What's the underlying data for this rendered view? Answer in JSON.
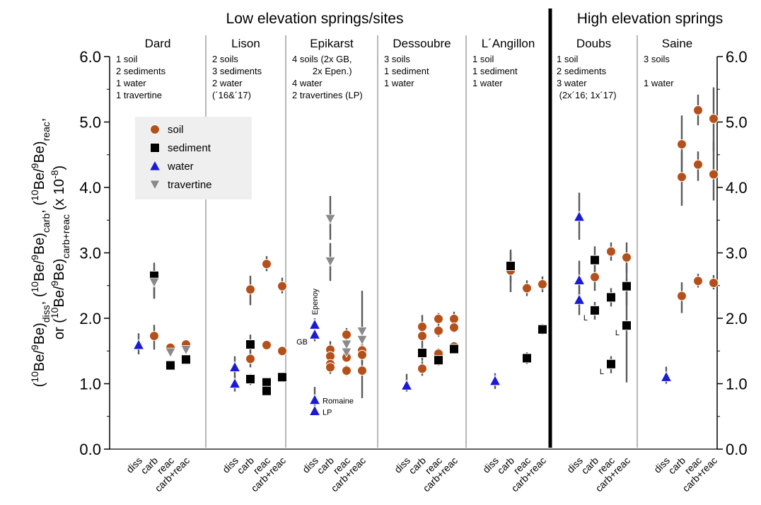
{
  "chart_data": {
    "type": "scatter",
    "header_low": "Low elevation springs/sites",
    "header_high": "High elevation springs",
    "ylabel_lines": [
      [
        "(",
        {
          "sup": "10"
        },
        "Be/",
        {
          "sup": "9"
        },
        "Be)",
        {
          "sub": "diss"
        },
        ", (",
        {
          "sup": "10"
        },
        "Be/",
        {
          "sup": "9"
        },
        "Be)",
        {
          "sub": "carb"
        },
        ", (",
        {
          "sup": "10"
        },
        "Be/",
        {
          "sup": "9"
        },
        "Be)",
        {
          "sub": "reac"
        },
        ","
      ],
      [
        "or (",
        {
          "sup": "10"
        },
        "Be/",
        {
          "sup": "9"
        },
        "Be)",
        {
          "sub": "carb+reac"
        },
        " (x 10",
        {
          "sup": "-8"
        },
        ")"
      ]
    ],
    "ylim": [
      0,
      6
    ],
    "yticks": [
      "0.0",
      "1.0",
      "2.0",
      "3.0",
      "4.0",
      "5.0",
      "6.0"
    ],
    "categories": [
      "diss",
      "carb",
      "reac",
      "carb+reac"
    ],
    "legend": [
      {
        "key": "soil",
        "label": "soil",
        "color": "#b5501a"
      },
      {
        "key": "sediment",
        "label": "sediment",
        "color": "#000000"
      },
      {
        "key": "water",
        "label": "water",
        "color": "#1a1ad8"
      },
      {
        "key": "travertine",
        "label": "travertine",
        "color": "#8a8a8a"
      }
    ],
    "sites": [
      {
        "name": "Dard",
        "info": [
          "1 soil",
          "2 sediments",
          "1 water",
          "1 travertine"
        ],
        "points": [
          {
            "cat": "diss",
            "kind": "water",
            "y": 1.59,
            "err": [
              1.45,
              1.77
            ]
          },
          {
            "cat": "carb",
            "kind": "soil",
            "y": 1.73,
            "err": [
              1.52,
              1.9
            ]
          },
          {
            "cat": "carb",
            "kind": "sediment",
            "y": 2.65,
            "err": [
              2.3,
              2.85
            ]
          },
          {
            "cat": "carb",
            "kind": "travertine",
            "y": 2.55,
            "err": [
              2.3,
              2.75
            ]
          },
          {
            "cat": "reac",
            "kind": "soil",
            "y": 1.55,
            "err": [
              1.5,
              1.6
            ]
          },
          {
            "cat": "reac",
            "kind": "sediment",
            "y": 1.28,
            "err": [
              1.22,
              1.34
            ]
          },
          {
            "cat": "reac",
            "kind": "travertine",
            "y": 1.48,
            "err": [
              1.44,
              1.52
            ]
          },
          {
            "cat": "carb+reac",
            "kind": "soil",
            "y": 1.6,
            "err": [
              1.55,
              1.65
            ]
          },
          {
            "cat": "carb+reac",
            "kind": "sediment",
            "y": 1.37,
            "err": [
              1.32,
              1.42
            ]
          },
          {
            "cat": "carb+reac",
            "kind": "travertine",
            "y": 1.52,
            "err": [
              1.48,
              1.56
            ]
          }
        ]
      },
      {
        "name": "Lison",
        "info": [
          "2 soils",
          "3 sediments",
          "2 water",
          "(´16&´17)"
        ],
        "points": [
          {
            "cat": "diss",
            "kind": "water",
            "y": 1.25,
            "err": [
              1.1,
              1.42
            ]
          },
          {
            "cat": "diss",
            "kind": "water",
            "y": 1.0,
            "err": [
              0.88,
              1.12
            ]
          },
          {
            "cat": "carb",
            "kind": "soil",
            "y": 2.44,
            "err": [
              2.2,
              2.65
            ]
          },
          {
            "cat": "carb",
            "kind": "soil",
            "y": 1.38,
            "err": [
              1.25,
              1.52
            ]
          },
          {
            "cat": "carb",
            "kind": "sediment",
            "y": 1.6,
            "err": [
              1.45,
              1.75
            ]
          },
          {
            "cat": "carb",
            "kind": "sediment",
            "y": 1.07,
            "err": [
              0.98,
              1.15
            ]
          },
          {
            "cat": "reac",
            "kind": "soil",
            "y": 2.83,
            "err": [
              2.72,
              2.95
            ]
          },
          {
            "cat": "reac",
            "kind": "soil",
            "y": 1.59,
            "err": [
              1.52,
              1.66
            ]
          },
          {
            "cat": "reac",
            "kind": "sediment",
            "y": 1.02,
            "err": [
              0.96,
              1.08
            ]
          },
          {
            "cat": "reac",
            "kind": "sediment",
            "y": 0.89,
            "err": [
              0.84,
              0.94
            ]
          },
          {
            "cat": "carb+reac",
            "kind": "soil",
            "y": 2.49,
            "err": [
              2.38,
              2.62
            ]
          },
          {
            "cat": "carb+reac",
            "kind": "soil",
            "y": 1.5,
            "err": [
              1.45,
              1.55
            ]
          },
          {
            "cat": "carb+reac",
            "kind": "sediment",
            "y": 1.1,
            "err": [
              1.04,
              1.16
            ]
          }
        ]
      },
      {
        "name": "Epikarst",
        "info": [
          "4 soils (2x GB,",
          "        2x Epen.)",
          "4 water",
          "2 travertines (LP)"
        ],
        "points": [
          {
            "cat": "diss",
            "kind": "water",
            "y": 1.9,
            "err": [
              1.8,
              2.0
            ],
            "label": "Epenoy",
            "label_pos": "vertical"
          },
          {
            "cat": "diss",
            "kind": "water",
            "y": 1.75,
            "err": [
              1.65,
              1.85
            ],
            "label": "GB",
            "label_pos": "left"
          },
          {
            "cat": "diss",
            "kind": "water",
            "y": 0.75,
            "err": [
              0.65,
              0.95
            ],
            "label": "Romaine",
            "label_pos": "right"
          },
          {
            "cat": "diss",
            "kind": "water",
            "y": 0.58,
            "err": [
              0.52,
              0.64
            ],
            "label": "LP",
            "label_pos": "right"
          },
          {
            "cat": "carb",
            "kind": "soil",
            "y": 1.52,
            "err": [
              1.4,
              1.65
            ]
          },
          {
            "cat": "carb",
            "kind": "soil",
            "y": 1.42,
            "err": [
              1.32,
              1.52
            ]
          },
          {
            "cat": "carb",
            "kind": "soil",
            "y": 1.3,
            "err": [
              1.2,
              1.4
            ]
          },
          {
            "cat": "carb",
            "kind": "soil",
            "y": 1.25,
            "err": [
              1.15,
              1.35
            ]
          },
          {
            "cat": "carb",
            "kind": "travertine",
            "y": 3.52,
            "err": [
              3.2,
              3.87
            ]
          },
          {
            "cat": "carb",
            "kind": "travertine",
            "y": 2.87,
            "err": [
              2.57,
              3.15
            ]
          },
          {
            "cat": "reac",
            "kind": "soil",
            "y": 1.75,
            "err": [
              1.65,
              1.85
            ]
          },
          {
            "cat": "reac",
            "kind": "soil",
            "y": 1.42,
            "err": [
              1.35,
              1.5
            ]
          },
          {
            "cat": "reac",
            "kind": "soil",
            "y": 1.4,
            "err": [
              1.33,
              1.47
            ]
          },
          {
            "cat": "reac",
            "kind": "soil",
            "y": 1.2,
            "err": [
              1.12,
              1.28
            ]
          },
          {
            "cat": "reac",
            "kind": "travertine",
            "y": 1.6,
            "err": [
              1.52,
              1.68
            ]
          },
          {
            "cat": "reac",
            "kind": "travertine",
            "y": 1.48,
            "err": [
              1.4,
              1.56
            ]
          },
          {
            "cat": "carb+reac",
            "kind": "soil",
            "y": 1.51,
            "err": [
              1.4,
              1.62
            ]
          },
          {
            "cat": "carb+reac",
            "kind": "soil",
            "y": 1.44,
            "err": [
              1.3,
              1.58
            ]
          },
          {
            "cat": "carb+reac",
            "kind": "soil",
            "y": 1.2,
            "err": [
              0.78,
              1.65
            ]
          },
          {
            "cat": "carb+reac",
            "kind": "travertine",
            "y": 1.8,
            "err": [
              1.5,
              2.42
            ]
          },
          {
            "cat": "carb+reac",
            "kind": "travertine",
            "y": 1.67,
            "err": [
              1.55,
              1.78
            ]
          }
        ]
      },
      {
        "name": "Dessoubre",
        "info": [
          "3 soils",
          "1 sediment",
          "1 water"
        ],
        "points": [
          {
            "cat": "diss",
            "kind": "water",
            "y": 0.97,
            "err": [
              0.88,
              1.15
            ]
          },
          {
            "cat": "carb",
            "kind": "soil",
            "y": 1.87,
            "err": [
              1.75,
              2.05
            ]
          },
          {
            "cat": "carb",
            "kind": "soil",
            "y": 1.73,
            "err": [
              1.6,
              1.85
            ]
          },
          {
            "cat": "carb",
            "kind": "soil",
            "y": 1.23,
            "err": [
              1.12,
              1.34
            ]
          },
          {
            "cat": "carb",
            "kind": "sediment",
            "y": 1.47,
            "err": [
              1.35,
              1.6
            ]
          },
          {
            "cat": "reac",
            "kind": "soil",
            "y": 1.99,
            "err": [
              1.9,
              2.08
            ]
          },
          {
            "cat": "reac",
            "kind": "soil",
            "y": 1.81,
            "err": [
              1.72,
              1.9
            ]
          },
          {
            "cat": "reac",
            "kind": "soil",
            "y": 1.46,
            "err": [
              1.38,
              1.54
            ]
          },
          {
            "cat": "reac",
            "kind": "sediment",
            "y": 1.36,
            "err": [
              1.28,
              1.44
            ]
          },
          {
            "cat": "carb+reac",
            "kind": "soil",
            "y": 1.99,
            "err": [
              1.9,
              2.1
            ]
          },
          {
            "cat": "carb+reac",
            "kind": "soil",
            "y": 1.86,
            "err": [
              1.78,
              1.94
            ]
          },
          {
            "cat": "carb+reac",
            "kind": "soil",
            "y": 1.57,
            "err": [
              1.5,
              1.64
            ]
          },
          {
            "cat": "carb+reac",
            "kind": "sediment",
            "y": 1.53,
            "err": [
              1.46,
              1.6
            ]
          }
        ]
      },
      {
        "name": "L´Angillon",
        "info": [
          "1 soil",
          "1 sediment",
          "1 water"
        ],
        "points": [
          {
            "cat": "diss",
            "kind": "water",
            "y": 1.04,
            "err": [
              0.92,
              1.16
            ]
          },
          {
            "cat": "carb",
            "kind": "soil",
            "y": 2.73,
            "err": [
              2.4,
              3.02
            ]
          },
          {
            "cat": "carb",
            "kind": "sediment",
            "y": 2.8,
            "err": [
              2.55,
              3.05
            ]
          },
          {
            "cat": "reac",
            "kind": "soil",
            "y": 2.46,
            "err": [
              2.34,
              2.58
            ]
          },
          {
            "cat": "reac",
            "kind": "sediment",
            "y": 1.39,
            "err": [
              1.3,
              1.48
            ]
          },
          {
            "cat": "carb+reac",
            "kind": "soil",
            "y": 2.52,
            "err": [
              2.4,
              2.64
            ]
          },
          {
            "cat": "carb+reac",
            "kind": "sediment",
            "y": 1.83,
            "err": [
              1.75,
              1.91
            ]
          }
        ]
      },
      {
        "name": "Doubs",
        "info": [
          "1 soil",
          "2 sediments",
          "3 water",
          " (2x´16; 1x´17)"
        ],
        "points": [
          {
            "cat": "diss",
            "kind": "water",
            "y": 3.55,
            "err": [
              3.2,
              3.92
            ]
          },
          {
            "cat": "diss",
            "kind": "water",
            "y": 2.58,
            "err": [
              2.35,
              2.88
            ]
          },
          {
            "cat": "diss",
            "kind": "water",
            "y": 2.28,
            "err": [
              2.05,
              2.5
            ]
          },
          {
            "cat": "carb",
            "kind": "soil",
            "y": 2.63,
            "err": [
              2.42,
              2.85
            ]
          },
          {
            "cat": "carb",
            "kind": "sediment",
            "y": 2.89,
            "err": [
              2.7,
              3.1
            ]
          },
          {
            "cat": "carb",
            "kind": "sediment",
            "y": 2.12,
            "err": [
              1.98,
              2.25
            ],
            "label": "L",
            "label_pos": "left"
          },
          {
            "cat": "reac",
            "kind": "soil",
            "y": 3.02,
            "err": [
              2.88,
              3.16
            ]
          },
          {
            "cat": "reac",
            "kind": "sediment",
            "y": 2.32,
            "err": [
              2.18,
              2.46
            ]
          },
          {
            "cat": "reac",
            "kind": "sediment",
            "y": 1.3,
            "err": [
              1.16,
              1.42
            ],
            "label": "L",
            "label_pos": "left"
          },
          {
            "cat": "carb+reac",
            "kind": "soil",
            "y": 2.93,
            "err": [
              2.7,
              3.16
            ]
          },
          {
            "cat": "carb+reac",
            "kind": "sediment",
            "y": 2.49,
            "err": [
              2.2,
              2.82
            ]
          },
          {
            "cat": "carb+reac",
            "kind": "sediment",
            "y": 1.89,
            "err": [
              1.02,
              2.6
            ],
            "label": "L",
            "label_pos": "left"
          }
        ]
      },
      {
        "name": "Saine",
        "info": [
          "3 soils",
          "",
          "1 water"
        ],
        "points": [
          {
            "cat": "diss",
            "kind": "water",
            "y": 1.1,
            "err": [
              1.0,
              1.26
            ]
          },
          {
            "cat": "carb",
            "kind": "soil",
            "y": 4.66,
            "err": [
              4.2,
              5.1
            ]
          },
          {
            "cat": "carb",
            "kind": "soil",
            "y": 4.16,
            "err": [
              3.72,
              4.55
            ]
          },
          {
            "cat": "carb",
            "kind": "soil",
            "y": 2.34,
            "err": [
              2.08,
              2.55
            ]
          },
          {
            "cat": "reac",
            "kind": "soil",
            "y": 5.18,
            "err": [
              4.95,
              5.42
            ]
          },
          {
            "cat": "reac",
            "kind": "soil",
            "y": 4.35,
            "err": [
              4.1,
              4.55
            ]
          },
          {
            "cat": "reac",
            "kind": "soil",
            "y": 2.57,
            "err": [
              2.47,
              2.68
            ]
          },
          {
            "cat": "carb+reac",
            "kind": "soil",
            "y": 5.05,
            "err": [
              4.55,
              5.53
            ]
          },
          {
            "cat": "carb+reac",
            "kind": "soil",
            "y": 4.2,
            "err": [
              3.8,
              4.7
            ]
          },
          {
            "cat": "carb+reac",
            "kind": "soil",
            "y": 2.54,
            "err": [
              2.44,
              2.66
            ]
          }
        ]
      }
    ]
  }
}
